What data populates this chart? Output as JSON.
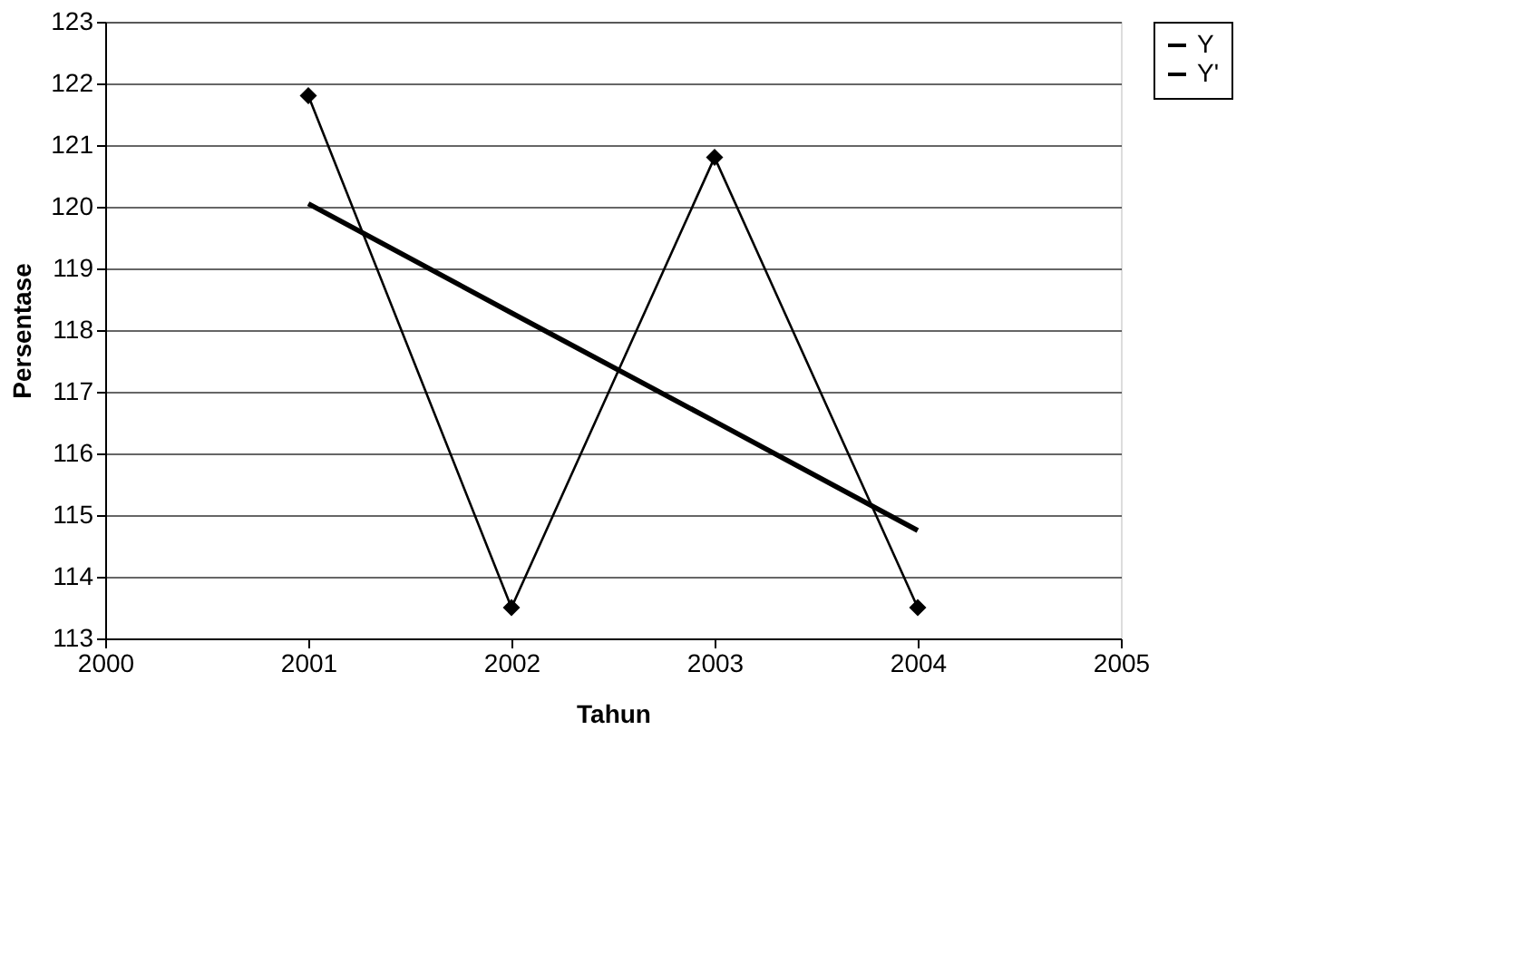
{
  "chart_data": {
    "type": "line",
    "xlabel": "Tahun",
    "ylabel": "Persentase",
    "x": [
      2001,
      2002,
      2003,
      2004
    ],
    "series": [
      {
        "name": "Y",
        "color": "#000000",
        "values": [
          121.8,
          113.5,
          120.8,
          113.5
        ],
        "marker": "diamond"
      },
      {
        "name": "Y'",
        "color": "#000000",
        "values": [
          120.05,
          118.28,
          116.52,
          114.75
        ],
        "marker": "none"
      }
    ],
    "xlim": [
      2000,
      2005
    ],
    "xticks": [
      2000,
      2001,
      2002,
      2003,
      2004,
      2005
    ],
    "ylim": [
      113,
      123
    ],
    "yticks": [
      113,
      114,
      115,
      116,
      117,
      118,
      119,
      120,
      121,
      122,
      123
    ],
    "grid": "y",
    "legend": "right"
  }
}
